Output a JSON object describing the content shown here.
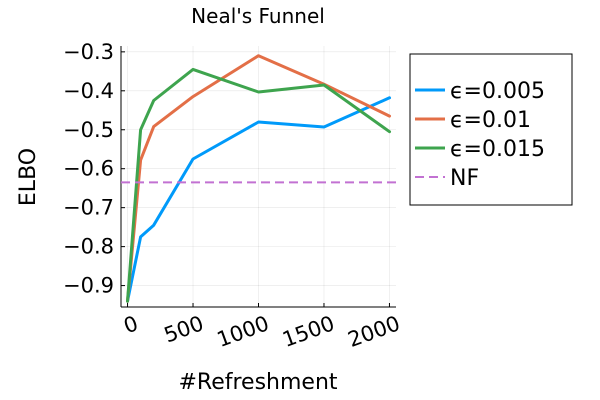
{
  "chart_data": {
    "type": "line",
    "title": "Neal's Funnel",
    "xlabel": "#Refreshment",
    "ylabel": "ELBO",
    "xlim": [
      -50,
      2050
    ],
    "ylim": [
      -0.955,
      -0.285
    ],
    "xticks": [
      0,
      500,
      1000,
      1500,
      2000
    ],
    "xtick_labels": [
      "0",
      "500",
      "1000",
      "1500",
      "2000"
    ],
    "yticks": [
      -0.9,
      -0.8,
      -0.7,
      -0.6,
      -0.5,
      -0.4,
      -0.3
    ],
    "ytick_labels": [
      "−0.9",
      "−0.8",
      "−0.7",
      "−0.6",
      "−0.5",
      "−0.4",
      "−0.3"
    ],
    "grid": true,
    "legend_position": "outside-right",
    "series": [
      {
        "name": "ϵ=0.005",
        "color": "#009AFA",
        "style": "solid",
        "x": [
          0,
          100,
          200,
          500,
          1000,
          1500,
          2000
        ],
        "y": [
          -0.94,
          -0.775,
          -0.745,
          -0.575,
          -0.48,
          -0.493,
          -0.418
        ]
      },
      {
        "name": "ϵ=0.01",
        "color": "#E36F47",
        "style": "solid",
        "x": [
          0,
          100,
          200,
          500,
          1000,
          1500,
          2000
        ],
        "y": [
          -0.94,
          -0.578,
          -0.492,
          -0.415,
          -0.31,
          -0.383,
          -0.465
        ]
      },
      {
        "name": "ϵ=0.015",
        "color": "#3EA44E",
        "style": "solid",
        "x": [
          0,
          100,
          200,
          500,
          1000,
          1500,
          2000
        ],
        "y": [
          -0.94,
          -0.5,
          -0.425,
          -0.345,
          -0.403,
          -0.385,
          -0.505
        ]
      },
      {
        "name": "NF",
        "color": "#C271D2",
        "style": "dashed",
        "hline": -0.635
      }
    ]
  }
}
